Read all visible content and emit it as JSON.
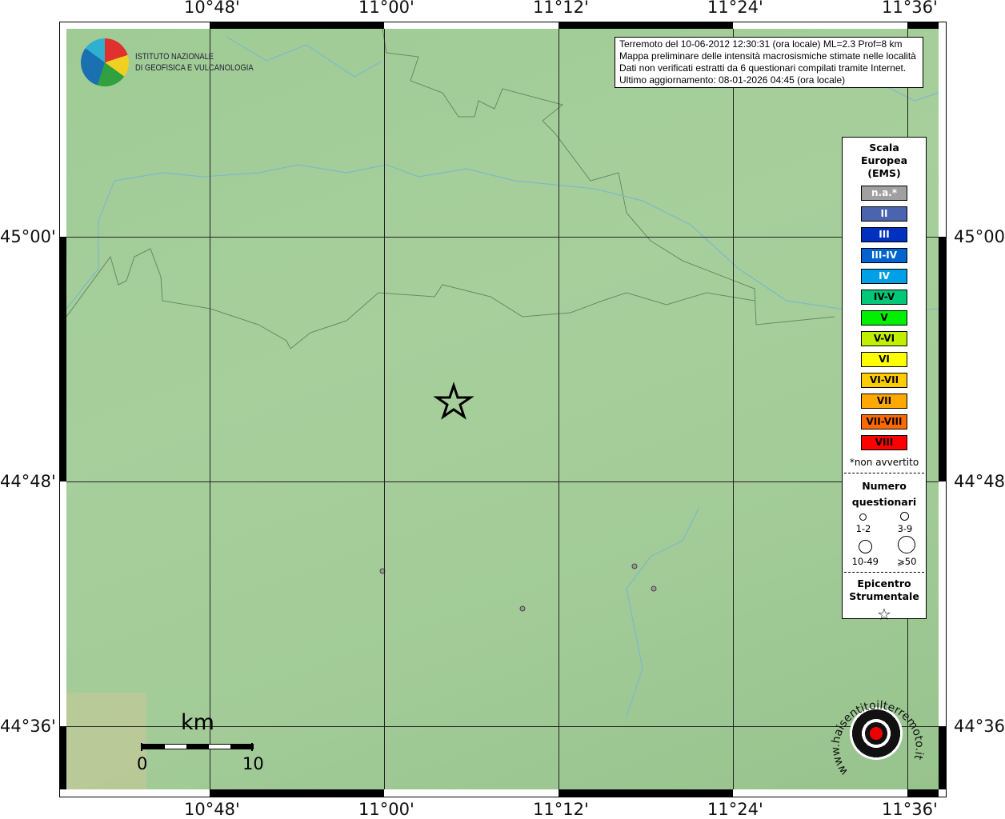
{
  "info": {
    "lines": [
      "Terremoto del 10-06-2012 12:30:31 (ora locale) ML=2.3 Prof=8 km",
      "Mappa preliminare delle intensità macrosismiche stimate nelle località",
      "Dati non verificati estratti da 6 questionari compilati tramite Internet.",
      "Ultimo aggiornamento: 08-01-2026 04:45 (ora locale)"
    ]
  },
  "logo": {
    "line1": "ISTITUTO NAZIONALE",
    "line2": "DI GEOFISICA E VULCANOLOGIA"
  },
  "axes": {
    "lon": [
      "10°48'",
      "11°00'",
      "11°12'",
      "11°24'",
      "11°36'"
    ],
    "lat": [
      "45°00'",
      "44°48'",
      "44°36'"
    ]
  },
  "legend": {
    "title": [
      "Scala",
      "Europea",
      "(EMS)"
    ],
    "scale": [
      {
        "label": "n.a.*",
        "color": "#a0a0a0",
        "text": "#fff"
      },
      {
        "label": "II",
        "color": "#4a64b0",
        "text": "#fff"
      },
      {
        "label": "III",
        "color": "#0030c0",
        "text": "#fff"
      },
      {
        "label": "III-IV",
        "color": "#0064d0",
        "text": "#fff"
      },
      {
        "label": "IV",
        "color": "#00a0e8",
        "text": "#fff"
      },
      {
        "label": "IV-V",
        "color": "#00c878",
        "text": "#000"
      },
      {
        "label": "V",
        "color": "#00f000",
        "text": "#000"
      },
      {
        "label": "V-VI",
        "color": "#c0f000",
        "text": "#000"
      },
      {
        "label": "VI",
        "color": "#ffff00",
        "text": "#000"
      },
      {
        "label": "VI-VII",
        "color": "#ffcc00",
        "text": "#000"
      },
      {
        "label": "VII",
        "color": "#ffa800",
        "text": "#000"
      },
      {
        "label": "VII-VIII",
        "color": "#ff6a00",
        "text": "#000"
      },
      {
        "label": "VIII",
        "color": "#ff0000",
        "text": "#000"
      }
    ],
    "note": "*non avvertito",
    "count_title": [
      "Numero",
      "questionari"
    ],
    "count_sizes": [
      "1-2",
      "3-9",
      "10-49",
      "⩾50"
    ],
    "epi_title": [
      "Epicentro",
      "Strumentale"
    ]
  },
  "scalebar": {
    "unit": "km",
    "start": "0",
    "end": "10"
  },
  "watermark": "www.haisentitoilterremoto.it"
}
